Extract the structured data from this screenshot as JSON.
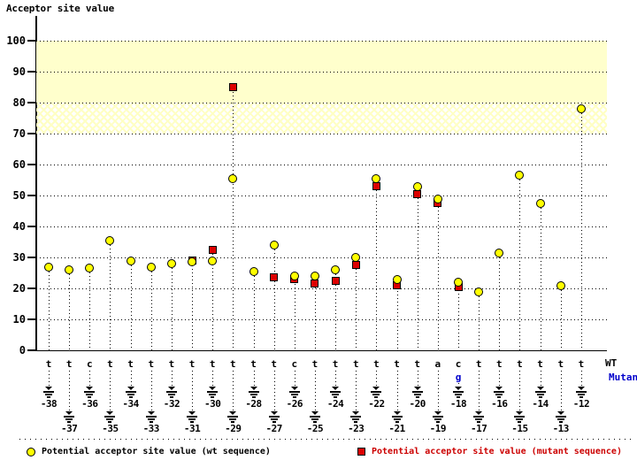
{
  "title": "Acceptor site value",
  "axis_footer": {
    "wt_label": "WT",
    "mutant_label": "Mutant"
  },
  "legend": {
    "wt": {
      "label": "Potential acceptor site value (wt sequence)",
      "marker": "circle"
    },
    "mutant": {
      "label": "Potential acceptor site value (mutant sequence)",
      "marker": "square"
    }
  },
  "colors": {
    "wt_marker": "#ffff00",
    "mutant_marker": "#dd0000",
    "marker_border": "#000000",
    "mutant_text": "#0000cc",
    "mutant_legend_text": "#cc0000",
    "band": "#ffffcc"
  },
  "chart_data": {
    "type": "scatter",
    "title": "Acceptor site value",
    "ylabel": "Acceptor site value",
    "ylim": [
      0,
      100
    ],
    "y_ticks": [
      0,
      10,
      20,
      30,
      40,
      50,
      60,
      70,
      80,
      90,
      100
    ],
    "grid": "dotted horizontal gridlines; dotted drop line from each point to baseline",
    "legend_position": "bottom",
    "x_positions": [
      -38,
      -37,
      -36,
      -35,
      -34,
      -33,
      -32,
      -31,
      -30,
      -29,
      -28,
      -27,
      -26,
      -25,
      -24,
      -23,
      -22,
      -21,
      -20,
      -19,
      -18,
      -17,
      -16,
      -15,
      -14,
      -13,
      -12
    ],
    "wt_nucleotides": [
      "t",
      "t",
      "c",
      "t",
      "t",
      "t",
      "t",
      "t",
      "t",
      "t",
      "t",
      "t",
      "c",
      "t",
      "t",
      "t",
      "t",
      "t",
      "t",
      "a",
      "c",
      "t",
      "t",
      "t",
      "t",
      "t",
      "t"
    ],
    "mutant_nucleotides": {
      "-18": "g"
    },
    "series": [
      {
        "name": "Potential acceptor site value (wt sequence)",
        "marker": "circle",
        "color": "#ffff00",
        "values": [
          27,
          26,
          26.5,
          35.5,
          29,
          27,
          28,
          28.5,
          29,
          55.5,
          25.5,
          34,
          24,
          24,
          26,
          30,
          55.5,
          23,
          53,
          49,
          22,
          19,
          31.5,
          56.5,
          47.5,
          21,
          78
        ]
      },
      {
        "name": "Potential acceptor site value (mutant sequence)",
        "marker": "square",
        "color": "#dd0000",
        "values": [
          null,
          null,
          null,
          null,
          null,
          null,
          null,
          29,
          32.5,
          85,
          null,
          23.5,
          23,
          21.5,
          22.5,
          27.5,
          53,
          21,
          50.5,
          47.5,
          20.5,
          null,
          null,
          null,
          null,
          null,
          null
        ]
      }
    ],
    "highlight_bands": [
      {
        "from": 80,
        "to": 100,
        "style": "solid",
        "color": "#ffffcc"
      },
      {
        "from": 70,
        "to": 80,
        "style": "crosshatch",
        "color": "#ffffcc"
      }
    ]
  }
}
